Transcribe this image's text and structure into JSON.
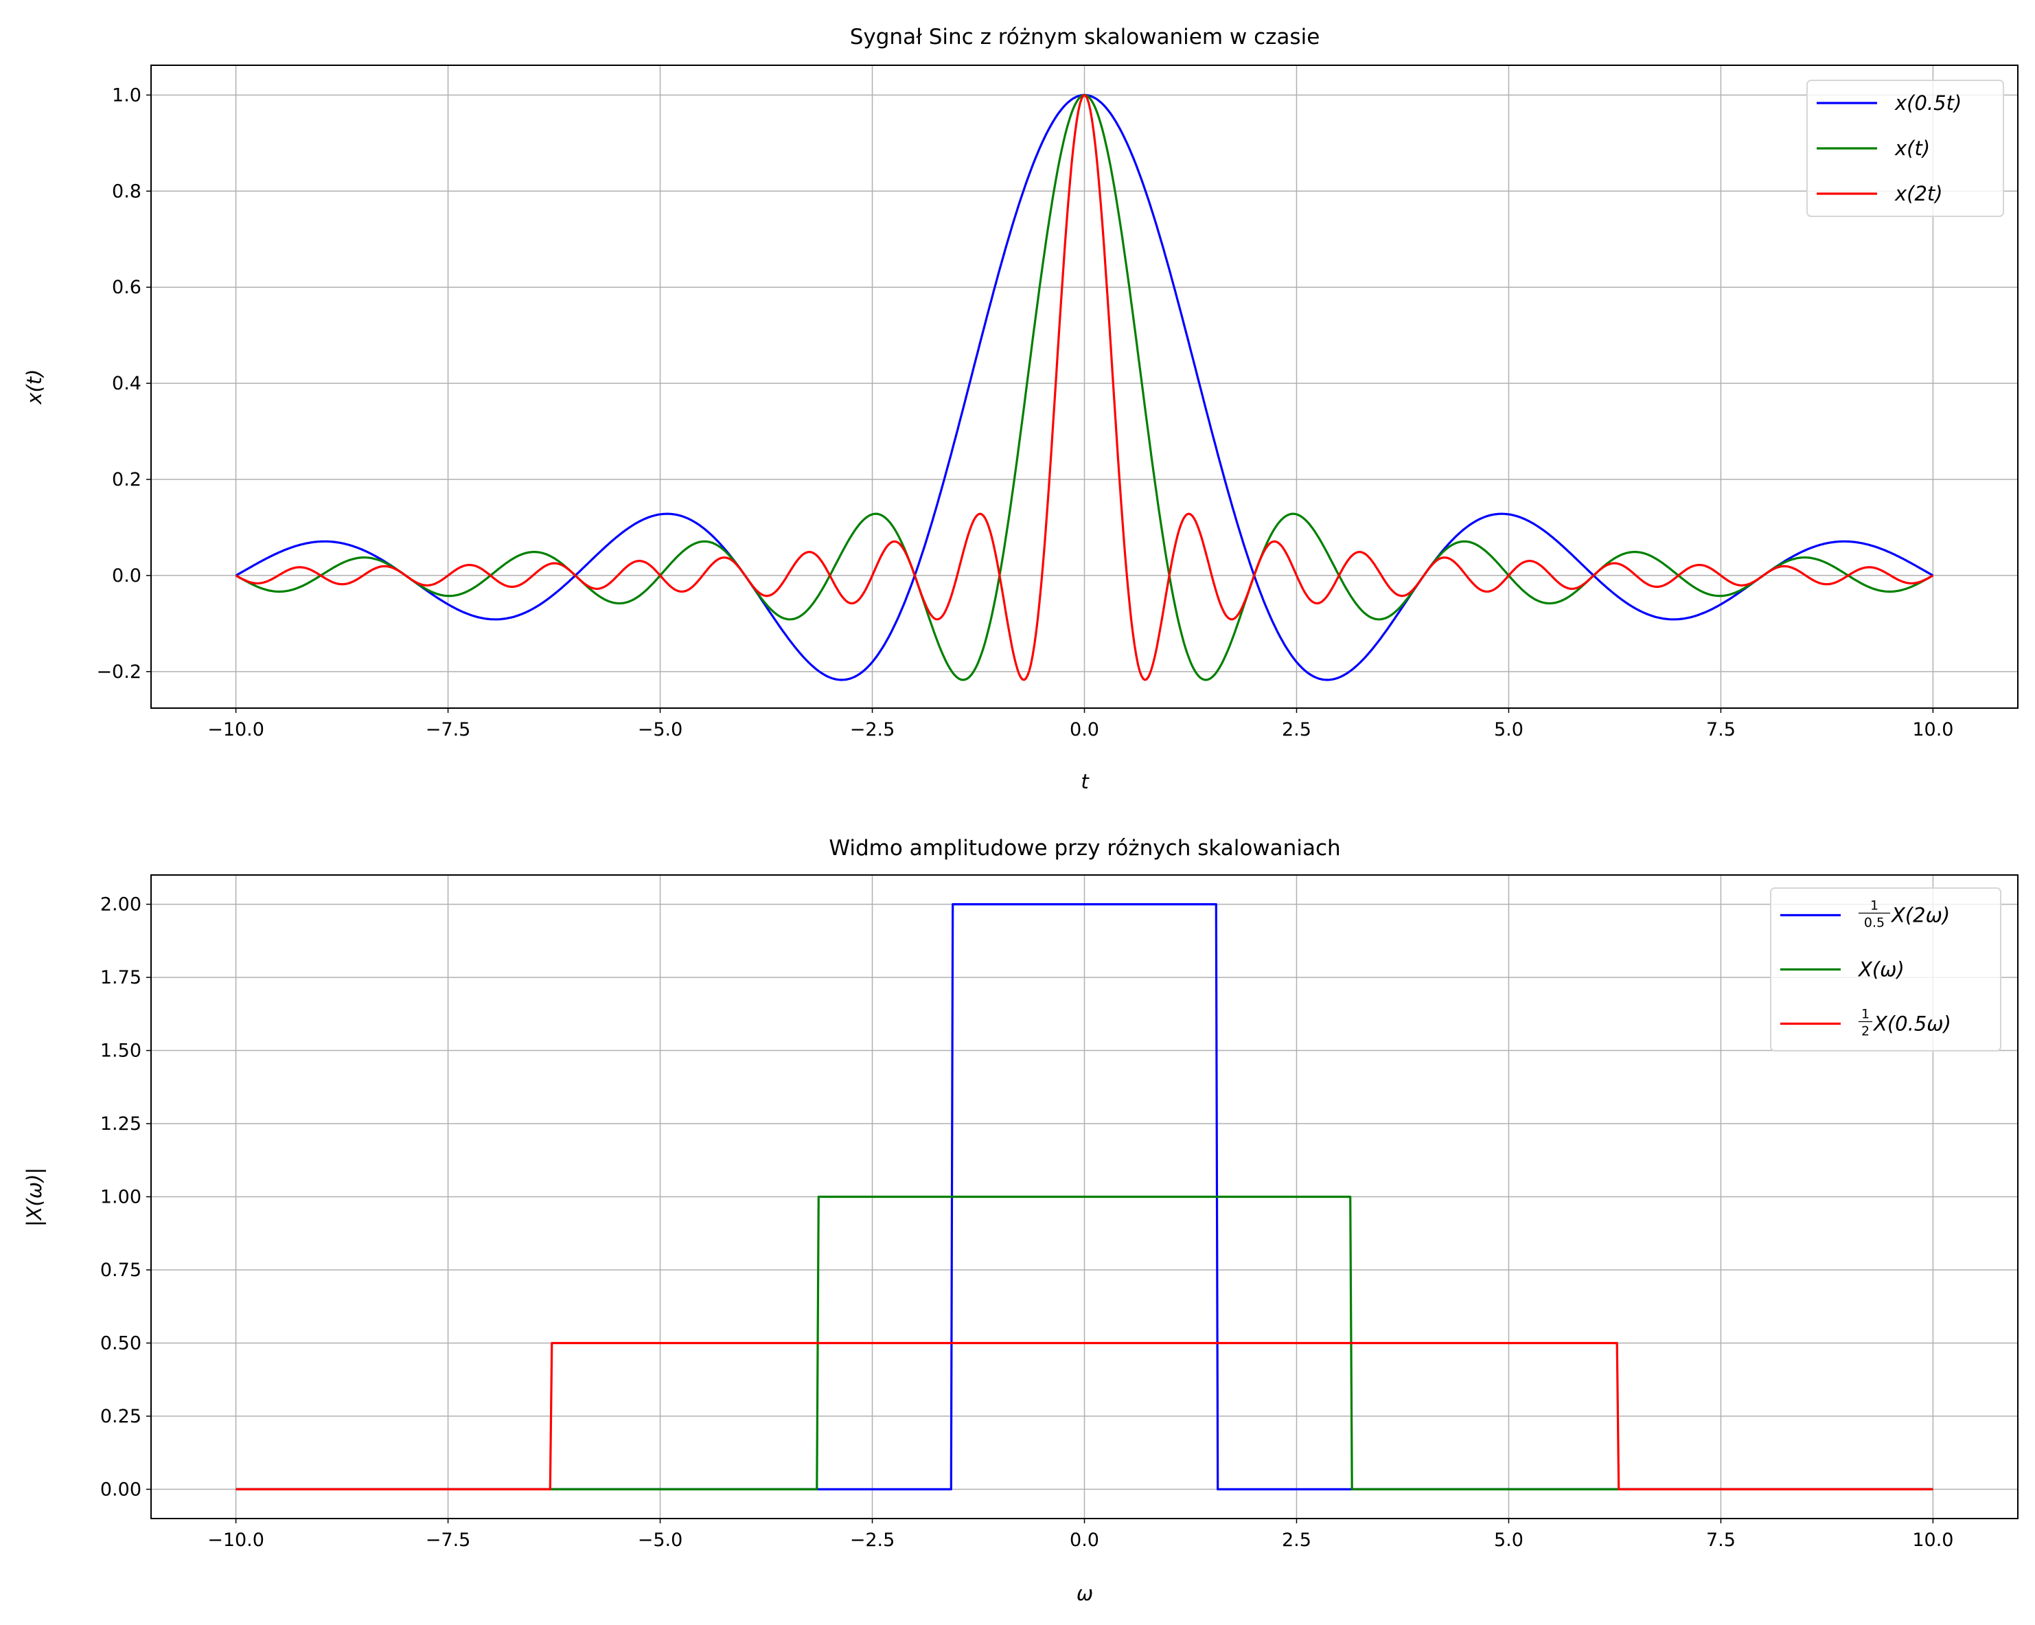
{
  "chart_data": [
    {
      "type": "line",
      "title": "Sygnał Sinc z różnym skalowaniem w czasie",
      "xlabel": "t",
      "ylabel": "x(t)",
      "xlim": [
        -11,
        11
      ],
      "ylim": [
        -0.276,
        1.062
      ],
      "xticks": [
        -10,
        -7.5,
        -5,
        -2.5,
        0,
        2.5,
        5,
        7.5,
        10
      ],
      "xtick_labels": [
        "−10.0",
        "−7.5",
        "−5.0",
        "−2.5",
        "0.0",
        "2.5",
        "5.0",
        "7.5",
        "10.0"
      ],
      "yticks": [
        -0.2,
        0,
        0.2,
        0.4,
        0.6,
        0.8,
        1.0
      ],
      "ytick_labels": [
        "−0.2",
        "0.0",
        "0.2",
        "0.4",
        "0.6",
        "0.8",
        "1.0"
      ],
      "grid": true,
      "legend_position": "top-right",
      "x_range": [
        -10,
        10
      ],
      "samples": 1000,
      "series": [
        {
          "name": "x(0.5t)",
          "function": "sinc",
          "scale": 0.5,
          "color": "#0000ff"
        },
        {
          "name": "x(t)",
          "function": "sinc",
          "scale": 1,
          "color": "#008000"
        },
        {
          "name": "x(2t)",
          "function": "sinc",
          "scale": 2,
          "color": "#ff0000"
        }
      ]
    },
    {
      "type": "line",
      "title": "Widmo amplitudowe przy różnych skalowaniach",
      "xlabel": "ω",
      "ylabel": "|X(ω)|",
      "xlim": [
        -11,
        11
      ],
      "ylim": [
        -0.1,
        2.1
      ],
      "xticks": [
        -10,
        -7.5,
        -5,
        -2.5,
        0,
        2.5,
        5,
        7.5,
        10
      ],
      "xtick_labels": [
        "−10.0",
        "−7.5",
        "−5.0",
        "−2.5",
        "0.0",
        "2.5",
        "5.0",
        "7.5",
        "10.0"
      ],
      "yticks": [
        0,
        0.25,
        0.5,
        0.75,
        1.0,
        1.25,
        1.5,
        1.75,
        2.0
      ],
      "ytick_labels": [
        "0.00",
        "0.25",
        "0.50",
        "0.75",
        "1.00",
        "1.25",
        "1.50",
        "1.75",
        "2.00"
      ],
      "grid": true,
      "legend_position": "top-right",
      "x_range": [
        -10,
        10
      ],
      "samples": 1000,
      "series": [
        {
          "name": "X(2ω)",
          "prefix_num": "1",
          "prefix_den": "0.5",
          "function": "rect",
          "cutoff": 1.5708,
          "height": 2.0,
          "color": "#0000ff"
        },
        {
          "name": "X(ω)",
          "function": "rect",
          "cutoff": 3.1416,
          "height": 1.0,
          "color": "#008000"
        },
        {
          "name": "X(0.5ω)",
          "prefix_num": "1",
          "prefix_den": "2",
          "function": "rect",
          "cutoff": 6.2832,
          "height": 0.5,
          "color": "#ff0000"
        }
      ]
    }
  ]
}
